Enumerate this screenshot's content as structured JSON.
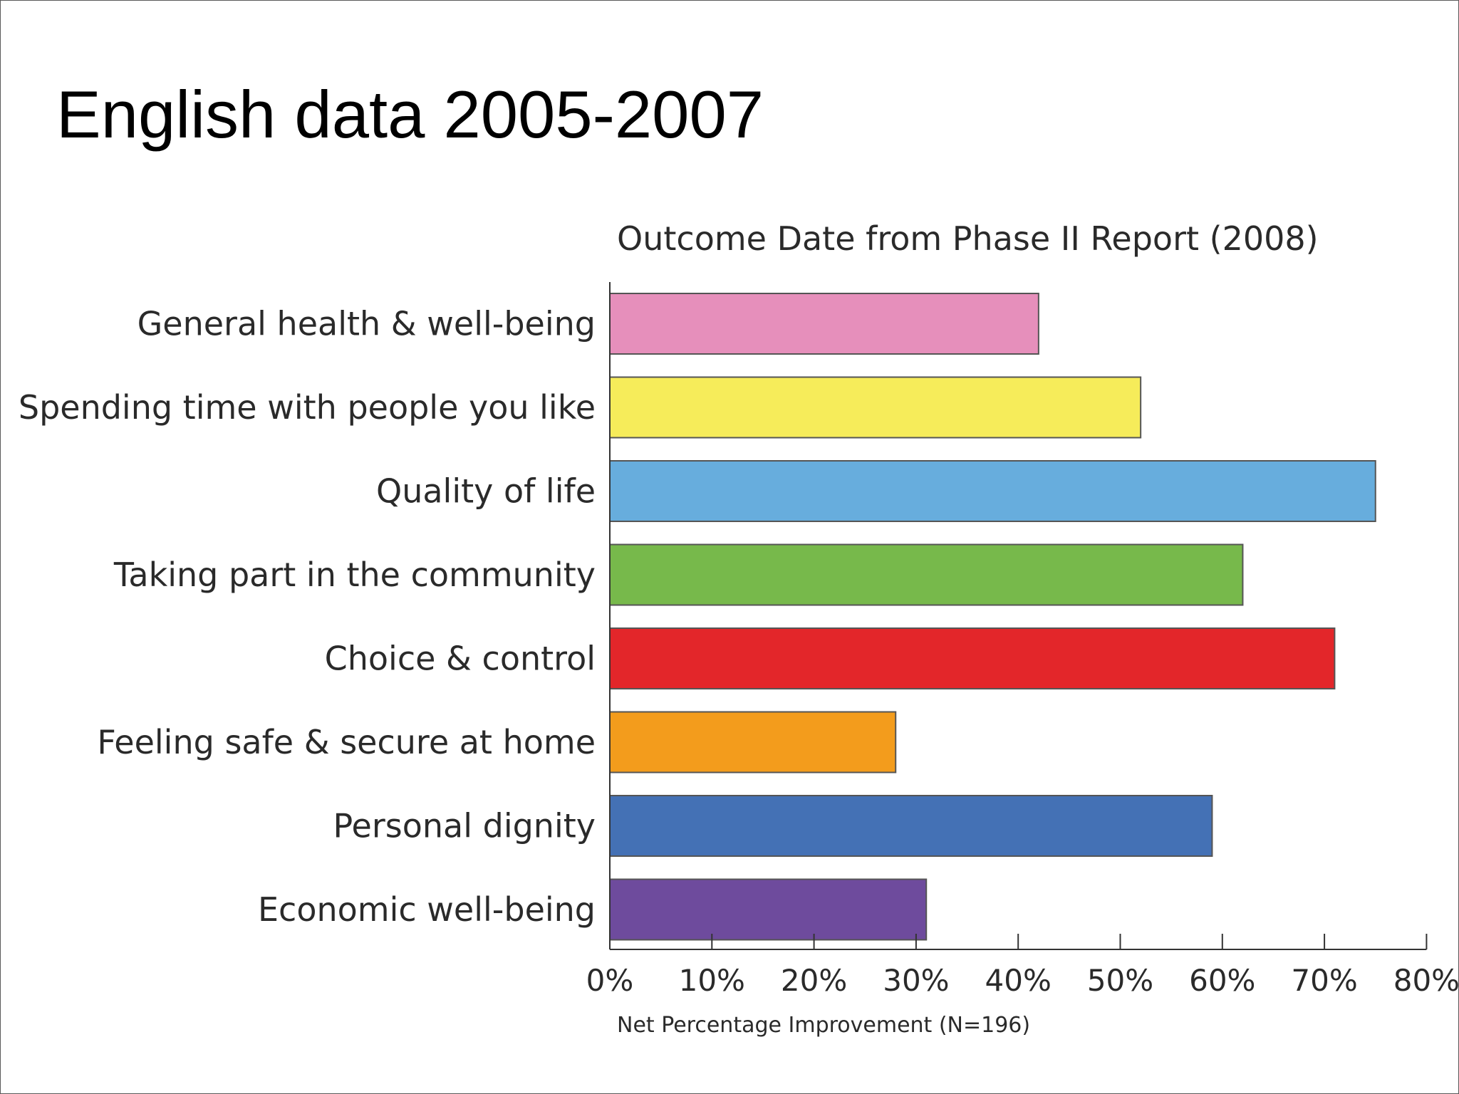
{
  "slide": {
    "title": "English data 2005-2007"
  },
  "chart_data": {
    "type": "bar",
    "orientation": "horizontal",
    "title": "Outcome Date from Phase II Report (2008)",
    "xlabel": "Net Percentage Improvement (N=196)",
    "ylabel": "",
    "xlim": [
      0,
      80
    ],
    "x_ticks": [
      0,
      10,
      20,
      30,
      40,
      50,
      60,
      70,
      80
    ],
    "x_tick_labels": [
      "0%",
      "10%",
      "20%",
      "30%",
      "40%",
      "50%",
      "60%",
      "70%",
      "80%"
    ],
    "grid": false,
    "legend": "none",
    "categories": [
      "General health & well-being",
      "Spending time with people you like",
      "Quality of life",
      "Taking part in the community",
      "Choice & control",
      "Feeling safe & secure at home",
      "Personal dignity",
      "Economic well-being"
    ],
    "values": [
      42,
      52,
      75,
      62,
      71,
      28,
      59,
      31
    ],
    "colors": [
      "#e68fbb",
      "#f6ec5a",
      "#67addd",
      "#77b94b",
      "#e3262a",
      "#f39c1c",
      "#4471b5",
      "#6e4b9d"
    ]
  }
}
